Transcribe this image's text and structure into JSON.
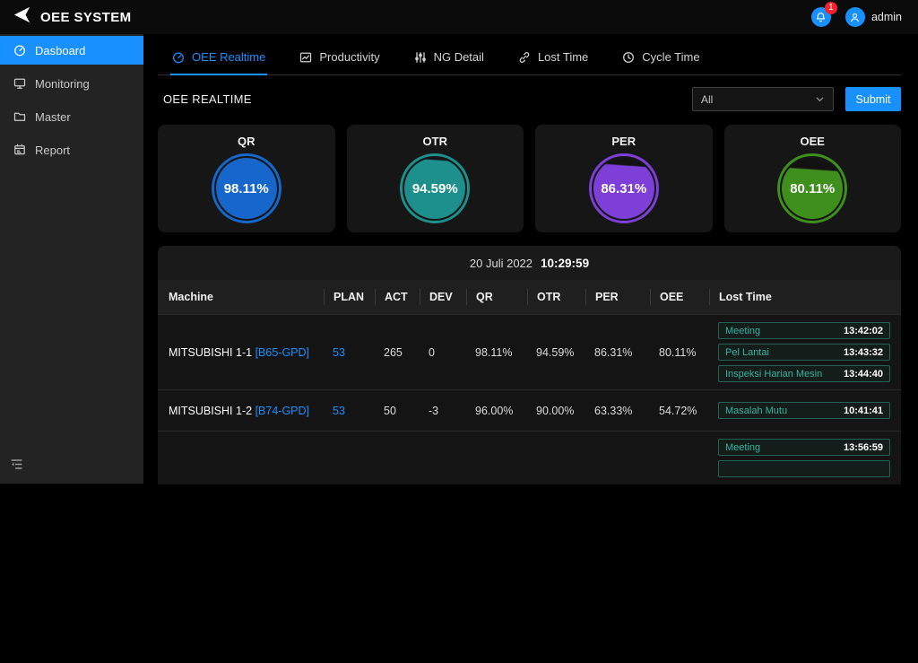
{
  "header": {
    "logo_text": "OEE SYSTEM",
    "notification_count": "1",
    "username": "admin",
    "icons": {
      "logo": "arrow-logo",
      "bell": "bell-icon",
      "user": "user-icon"
    }
  },
  "sidebar": {
    "items": [
      {
        "label": "Dasboard",
        "icon": "dashboard",
        "active": true
      },
      {
        "label": "Monitoring",
        "icon": "monitor",
        "active": false
      },
      {
        "label": "Master",
        "icon": "folder",
        "active": false
      },
      {
        "label": "Report",
        "icon": "report",
        "active": false
      }
    ]
  },
  "tabs": [
    {
      "label": "OEE Realtime",
      "icon": "dashboard",
      "active": true
    },
    {
      "label": "Productivity",
      "icon": "chart",
      "active": false
    },
    {
      "label": "NG Detail",
      "icon": "sliders",
      "active": false
    },
    {
      "label": "Lost Time",
      "icon": "link",
      "active": false
    },
    {
      "label": "Cycle Time",
      "icon": "clock",
      "active": false
    }
  ],
  "filter": {
    "section_title": "OEE REALTIME",
    "dropdown_value": "All",
    "submit_label": "Submit"
  },
  "accent_color": "#1890ff",
  "lost_time_color": "#35b3a1",
  "gauges": [
    {
      "label": "QR",
      "value_text": "98.11%",
      "percent": 98.11,
      "color": "#1666cb"
    },
    {
      "label": "OTR",
      "value_text": "94.59%",
      "percent": 94.59,
      "color": "#1d8f8c"
    },
    {
      "label": "PER",
      "value_text": "86.31%",
      "percent": 86.31,
      "color": "#7e3ed8"
    },
    {
      "label": "OEE",
      "value_text": "80.11%",
      "percent": 80.11,
      "color": "#3e8f1c"
    }
  ],
  "table": {
    "date_label": "20 Juli 2022",
    "time_label": "10:29:59",
    "columns": [
      "Machine",
      "PLAN",
      "ACT",
      "DEV",
      "QR",
      "OTR",
      "PER",
      "OEE",
      "Lost Time"
    ],
    "rows": [
      {
        "machine": "MITSUBISHI 1-1",
        "code": "[B65-GPD]",
        "plan": "53",
        "act": "265",
        "dev": "0",
        "qr": "98.11%",
        "otr": "94.59%",
        "per": "86.31%",
        "oee": "80.11%",
        "lost_times": [
          {
            "label": "Meeting",
            "time": "13:42:02"
          },
          {
            "label": "Pel Lantai",
            "time": "13:43:32"
          },
          {
            "label": "Inspeksi Harian Mesin",
            "time": "13:44:40"
          }
        ]
      },
      {
        "machine": "MITSUBISHI 1-2",
        "code": "[B74-GPD]",
        "plan": "53",
        "act": "50",
        "dev": "-3",
        "qr": "96.00%",
        "otr": "90.00%",
        "per": "63.33%",
        "oee": "54.72%",
        "lost_times": [
          {
            "label": "Masalah Mutu",
            "time": "10:41:41"
          }
        ]
      },
      {
        "machine": "",
        "code": "",
        "plan": "",
        "act": "",
        "dev": "",
        "qr": "",
        "otr": "",
        "per": "",
        "oee": "",
        "lost_times": [
          {
            "label": "Meeting",
            "time": "13:56:59"
          },
          {
            "label": "",
            "time": ""
          }
        ]
      }
    ]
  }
}
